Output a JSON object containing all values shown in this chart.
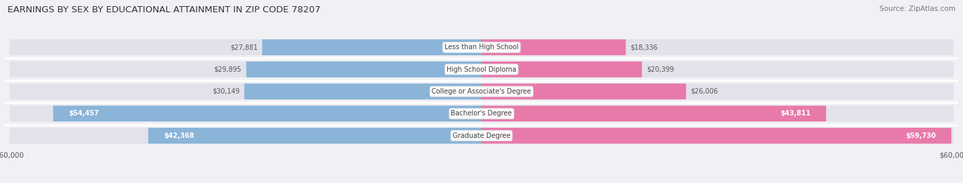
{
  "title": "EARNINGS BY SEX BY EDUCATIONAL ATTAINMENT IN ZIP CODE 78207",
  "source": "Source: ZipAtlas.com",
  "categories": [
    "Less than High School",
    "High School Diploma",
    "College or Associate's Degree",
    "Bachelor's Degree",
    "Graduate Degree"
  ],
  "male_values": [
    27881,
    29895,
    30149,
    54457,
    42368
  ],
  "female_values": [
    18336,
    20399,
    26006,
    43811,
    59730
  ],
  "male_color": "#8ab4d8",
  "female_color": "#e87aab",
  "bar_bg_color": "#e2e2ea",
  "max_value": 60000,
  "title_fontsize": 9.5,
  "source_fontsize": 7.5,
  "bar_height": 0.72,
  "background_color": "#f0f0f5",
  "text_dark": "#555555",
  "text_white": "#ffffff"
}
